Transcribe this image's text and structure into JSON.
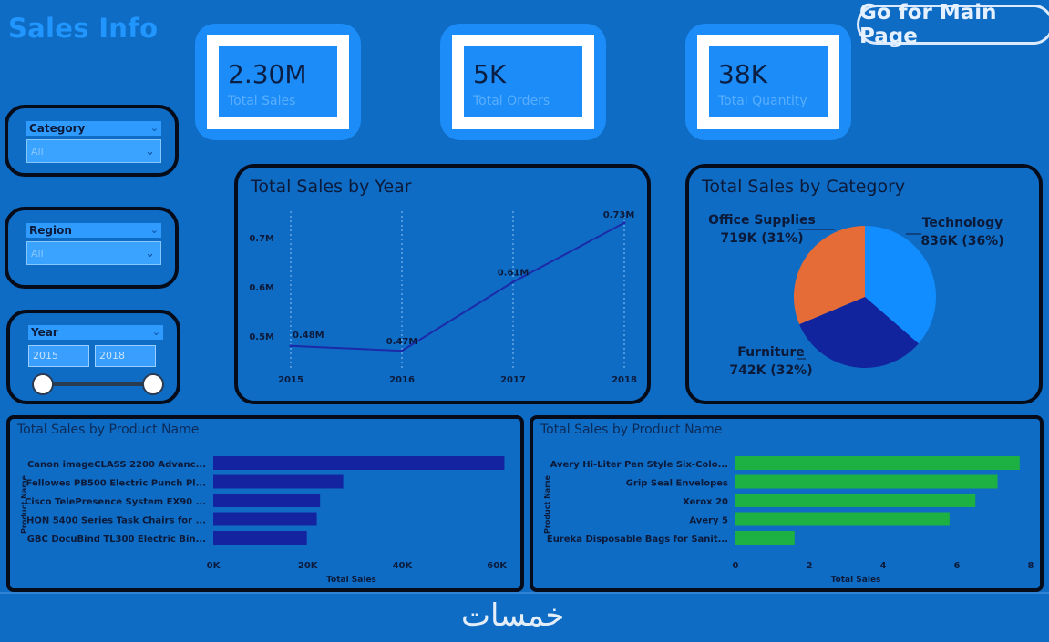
{
  "header": {
    "title": "Sales Info",
    "main_page_button": "Go for Main Page"
  },
  "kpis": [
    {
      "value": "2.30M",
      "label": "Total Sales"
    },
    {
      "value": "5K",
      "label": "Total Orders"
    },
    {
      "value": "38K",
      "label": "Total Quantity"
    }
  ],
  "slicers": {
    "category": {
      "label": "Category",
      "value": "All"
    },
    "region": {
      "label": "Region",
      "value": "All"
    },
    "year": {
      "label": "Year",
      "start": "2015",
      "end": "2018"
    }
  },
  "colors": {
    "background": "#0f6cc4",
    "kpi_blue": "#1b8cf8",
    "line": "#1a2aa8",
    "bar_dark": "#1424a0",
    "bar_green": "#1db043",
    "pie_technology": "#118dff",
    "pie_furniture": "#12239e",
    "pie_office": "#e66c37"
  },
  "chart_data": [
    {
      "type": "line",
      "title": "Total Sales by Year",
      "x": [
        "2015",
        "2016",
        "2017",
        "2018"
      ],
      "values": [
        0.48,
        0.47,
        0.61,
        0.73
      ],
      "data_labels": [
        "0.48M",
        "0.47M",
        "0.61M",
        "0.73M"
      ],
      "y_ticks": [
        0.5,
        0.6,
        0.7
      ],
      "y_tick_labels": [
        "0.5M",
        "0.6M",
        "0.7M"
      ],
      "ylim": [
        0.45,
        0.75
      ],
      "grid": "vertical dotted"
    },
    {
      "type": "pie",
      "title": "Total Sales by Category",
      "slices": [
        {
          "name": "Technology",
          "value": 836,
          "label": "836K (36%)",
          "color": "#118dff"
        },
        {
          "name": "Furniture",
          "value": 742,
          "label": "742K (32%)",
          "color": "#12239e"
        },
        {
          "name": "Office Supplies",
          "value": 719,
          "label": "719K (31%)",
          "color": "#e66c37"
        }
      ]
    },
    {
      "type": "bar",
      "orientation": "horizontal",
      "title": "Total Sales by Product Name",
      "ylabel": "Product Name",
      "xlabel": "Total Sales",
      "categories": [
        "Canon imageCLASS 2200 Advanc...",
        "Fellowes PB500 Electric Punch Pl...",
        "Cisco TelePresence System EX90 ...",
        "HON 5400 Series Task Chairs for ...",
        "GBC DocuBind TL300 Electric Bin..."
      ],
      "values": [
        61600,
        27500,
        22600,
        21900,
        19800
      ],
      "xlim": [
        0,
        70000
      ],
      "x_ticks": [
        0,
        20000,
        40000,
        60000
      ],
      "x_tick_labels": [
        "0K",
        "20K",
        "40K",
        "60K"
      ]
    },
    {
      "type": "bar",
      "orientation": "horizontal",
      "title": "Total Sales by Product Name",
      "ylabel": "Product Name",
      "xlabel": "Total Sales",
      "categories": [
        "Avery Hi-Liter Pen Style Six-Colo...",
        "Grip Seal Envelopes",
        "Xerox 20",
        "Avery 5",
        "Eureka Disposable Bags for Sanit..."
      ],
      "values": [
        7.7,
        7.1,
        6.5,
        5.8,
        1.6
      ],
      "xlim": [
        0,
        8
      ],
      "x_ticks": [
        0,
        2,
        4,
        6,
        8
      ],
      "x_tick_labels": [
        "0",
        "2",
        "4",
        "6",
        "8"
      ]
    }
  ],
  "footer": {
    "logo": "خمسات"
  }
}
